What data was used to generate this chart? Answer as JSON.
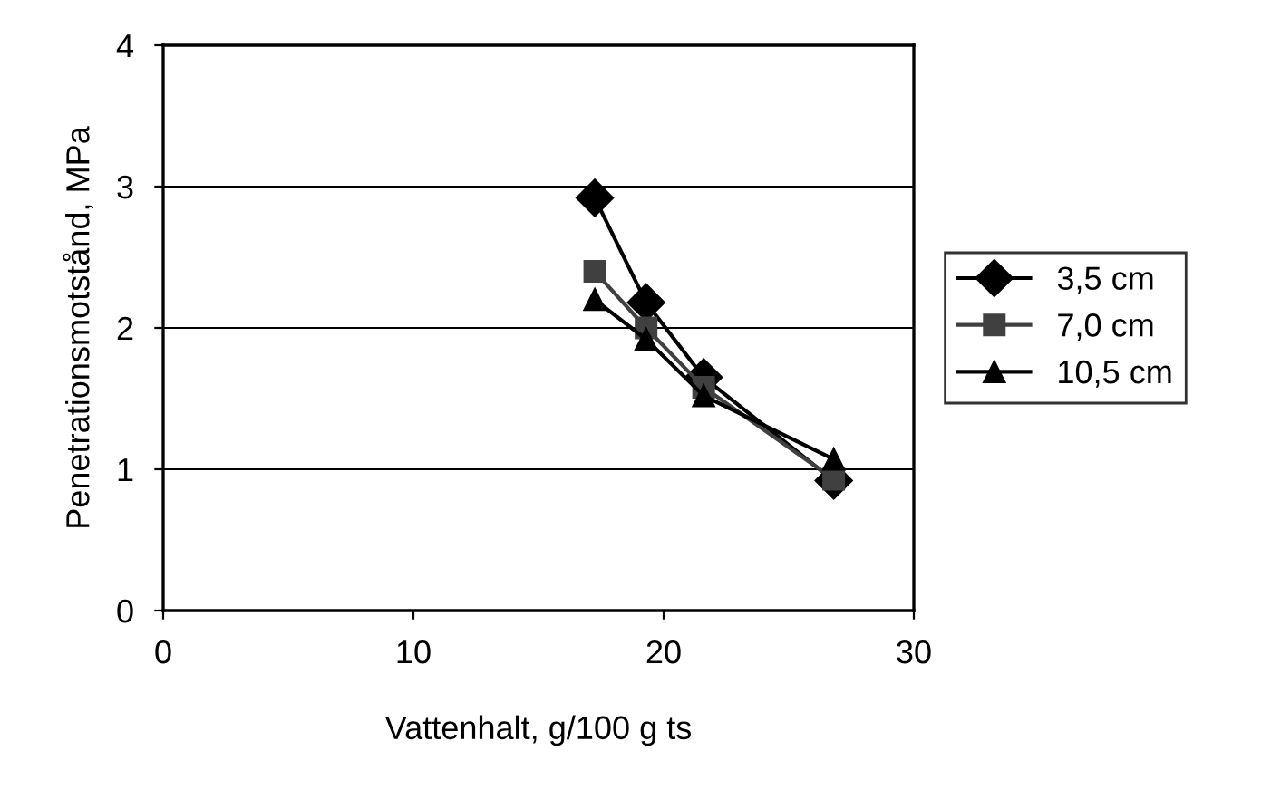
{
  "chart_data": {
    "type": "line",
    "xlabel": "Vattenhalt, g/100 g ts",
    "ylabel": "Penetrationsmotstånd, MPa",
    "x": [
      17.25,
      19.3,
      21.6,
      26.8
    ],
    "series": [
      {
        "name": "3,5 cm",
        "color": "#000000",
        "marker": "diamond",
        "values": [
          2.92,
          2.18,
          1.65,
          0.92
        ]
      },
      {
        "name": "7,0 cm",
        "color": "#404040",
        "marker": "square",
        "values": [
          2.4,
          2.0,
          1.58,
          0.93
        ]
      },
      {
        "name": "10,5 cm",
        "color": "#000000",
        "marker": "triangle",
        "values": [
          2.2,
          1.92,
          1.52,
          1.07
        ]
      }
    ],
    "xlim": [
      0,
      30
    ],
    "xticks": [
      0,
      10,
      20,
      30
    ],
    "ylim": [
      0,
      4
    ],
    "yticks": [
      0,
      1,
      2,
      3,
      4
    ],
    "grid": "y",
    "legend": "right"
  }
}
